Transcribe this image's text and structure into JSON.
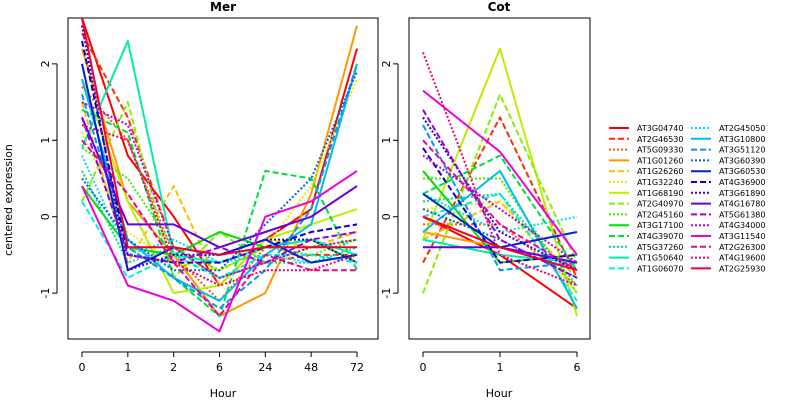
{
  "chart_data": [
    {
      "type": "line",
      "title": "Mer",
      "xlabel": "Hour",
      "ylabel": "centered expression",
      "categories": [
        "0",
        "1",
        "2",
        "6",
        "24",
        "48",
        "72"
      ],
      "yticks": [
        "-1",
        "0",
        "1",
        "2"
      ],
      "ylim": [
        -1.6,
        2.6
      ],
      "series": [
        {
          "name": "AT3G04740",
          "color": "#FF0000",
          "dash": "solid",
          "values": [
            2.6,
            0.8,
            0.0,
            -0.9,
            -0.3,
            0.1,
            2.2
          ]
        },
        {
          "name": "AT2G46530",
          "color": "#FF2A00",
          "dash": "dashed",
          "values": [
            2.4,
            1.3,
            -0.4,
            -0.8,
            -0.6,
            -0.5,
            -0.5
          ]
        },
        {
          "name": "AT5G09330",
          "color": "#FF5500",
          "dash": "dotted",
          "values": [
            1.7,
            1.0,
            -0.5,
            -1.1,
            -0.4,
            -0.3,
            -0.6
          ]
        },
        {
          "name": "AT1G01260",
          "color": "#FF9900",
          "dash": "solid",
          "values": [
            2.2,
            0.2,
            -0.5,
            -1.3,
            -1.0,
            0.3,
            2.5
          ]
        },
        {
          "name": "AT1G26260",
          "color": "#FFBB00",
          "dash": "dashed",
          "values": [
            1.5,
            -0.6,
            0.4,
            -0.9,
            -0.3,
            -0.4,
            -0.2
          ]
        },
        {
          "name": "AT1G32240",
          "color": "#EEEE00",
          "dash": "dotted",
          "values": [
            1.1,
            -0.2,
            -0.6,
            -0.7,
            -0.4,
            0.4,
            1.8
          ]
        },
        {
          "name": "AT1G68190",
          "color": "#BBEE00",
          "dash": "solid",
          "values": [
            1.8,
            0.2,
            -1.0,
            -0.9,
            -0.3,
            -0.1,
            0.1
          ]
        },
        {
          "name": "AT2G40970",
          "color": "#88EE00",
          "dash": "dashed",
          "values": [
            0.2,
            1.5,
            -0.8,
            -0.2,
            -0.6,
            -0.4,
            -0.3
          ]
        },
        {
          "name": "AT2G45160",
          "color": "#44EE00",
          "dash": "dotted",
          "values": [
            0.9,
            0.5,
            -0.4,
            -0.7,
            -0.4,
            -0.5,
            -0.3
          ]
        },
        {
          "name": "AT3G17100",
          "color": "#00DD00",
          "dash": "solid",
          "values": [
            0.4,
            -0.4,
            -0.5,
            -0.2,
            -0.4,
            -0.3,
            -0.6
          ]
        },
        {
          "name": "AT4G39070",
          "color": "#00DD44",
          "dash": "dashed",
          "values": [
            1.4,
            1.1,
            -0.8,
            -1.3,
            0.6,
            0.5,
            -0.7
          ]
        },
        {
          "name": "AT5G37260",
          "color": "#00DD88",
          "dash": "dotted",
          "values": [
            0.6,
            -0.6,
            -0.4,
            -0.8,
            -0.6,
            -0.6,
            -0.4
          ]
        },
        {
          "name": "AT1G50640",
          "color": "#00EEAA",
          "dash": "solid",
          "values": [
            0.9,
            2.3,
            -0.5,
            -0.6,
            -0.4,
            -0.3,
            -0.5
          ]
        },
        {
          "name": "AT1G06070",
          "color": "#00EEDD",
          "dash": "dashed",
          "values": [
            0.2,
            -0.8,
            -0.5,
            -0.8,
            -0.5,
            -0.5,
            -0.6
          ]
        },
        {
          "name": "AT2G45050",
          "color": "#00DDEE",
          "dash": "dotted",
          "values": [
            0.8,
            -0.5,
            -0.3,
            -0.6,
            -0.5,
            -0.6,
            -0.5
          ]
        },
        {
          "name": "AT3G10800",
          "color": "#00BBEE",
          "dash": "solid",
          "values": [
            1.8,
            -0.3,
            -0.8,
            -1.1,
            -0.5,
            -0.1,
            2.0
          ]
        },
        {
          "name": "AT3G51120",
          "color": "#0099EE",
          "dash": "dashed",
          "values": [
            1.6,
            -0.4,
            -0.8,
            -1.2,
            -0.7,
            0.1,
            2.0
          ]
        },
        {
          "name": "AT3G60390",
          "color": "#0066DD",
          "dash": "dotted",
          "values": [
            0.5,
            -0.3,
            -0.7,
            -0.7,
            -0.1,
            0.5,
            1.9
          ]
        },
        {
          "name": "AT3G60530",
          "color": "#0022CC",
          "dash": "solid",
          "values": [
            2.0,
            -0.7,
            -0.4,
            -0.5,
            -0.3,
            -0.6,
            -0.5
          ]
        },
        {
          "name": "AT4G36900",
          "color": "#1100CC",
          "dash": "dashed",
          "values": [
            2.3,
            -0.5,
            -0.6,
            -0.6,
            -0.4,
            -0.2,
            -0.1
          ]
        },
        {
          "name": "AT3G61890",
          "color": "#3300CC",
          "dash": "dotted",
          "values": [
            2.5,
            -0.7,
            -0.5,
            -0.5,
            -0.3,
            -0.3,
            -0.6
          ]
        },
        {
          "name": "AT4G16780",
          "color": "#6600DD",
          "dash": "solid",
          "values": [
            1.3,
            -0.1,
            -0.1,
            -0.4,
            -0.2,
            0.0,
            0.4
          ]
        },
        {
          "name": "AT5G61380",
          "color": "#9900DD",
          "dash": "dashed",
          "values": [
            1.3,
            -0.5,
            -0.6,
            -0.4,
            -0.6,
            -0.3,
            -0.2
          ]
        },
        {
          "name": "AT4G34000",
          "color": "#BB00DD",
          "dash": "dotted",
          "values": [
            1.5,
            1.2,
            -0.4,
            -0.8,
            -0.6,
            -0.4,
            -0.3
          ]
        },
        {
          "name": "AT3G11540",
          "color": "#EE00DD",
          "dash": "solid",
          "values": [
            0.4,
            -0.9,
            -1.1,
            -1.5,
            0.0,
            0.2,
            0.6
          ]
        },
        {
          "name": "AT2G26300",
          "color": "#EE0099",
          "dash": "dashed",
          "values": [
            1.0,
            0.3,
            -0.6,
            -1.3,
            -0.5,
            -0.7,
            -0.7
          ]
        },
        {
          "name": "AT4G19600",
          "color": "#EE0066",
          "dash": "dotted",
          "values": [
            1.2,
            1.0,
            -0.6,
            -0.9,
            -0.7,
            -0.7,
            -0.5
          ]
        },
        {
          "name": "AT2G25930",
          "color": "#EE0033",
          "dash": "solid",
          "values": [
            2.6,
            -0.4,
            -0.4,
            -0.5,
            -0.4,
            -0.4,
            -0.4
          ]
        }
      ]
    },
    {
      "type": "line",
      "title": "Cot",
      "xlabel": "Hour",
      "ylabel": "",
      "categories": [
        "0",
        "1",
        "6"
      ],
      "yticks": [
        "-1",
        "0",
        "1",
        "2"
      ],
      "ylim": [
        -1.6,
        2.6
      ],
      "series": [
        {
          "name": "AT3G04740",
          "color": "#FF0000",
          "dash": "solid",
          "values": [
            0.0,
            -0.5,
            -1.2
          ]
        },
        {
          "name": "AT2G46530",
          "color": "#FF2A00",
          "dash": "dashed",
          "values": [
            -0.6,
            1.3,
            -0.8
          ]
        },
        {
          "name": "AT5G09330",
          "color": "#FF5500",
          "dash": "dotted",
          "values": [
            -0.1,
            -0.1,
            -0.9
          ]
        },
        {
          "name": "AT1G01260",
          "color": "#FF9900",
          "dash": "solid",
          "values": [
            -0.2,
            -0.4,
            -0.6
          ]
        },
        {
          "name": "AT1G26260",
          "color": "#FFBB00",
          "dash": "dashed",
          "values": [
            -0.3,
            0.2,
            -0.8
          ]
        },
        {
          "name": "AT1G32240",
          "color": "#EEEE00",
          "dash": "dotted",
          "values": [
            0.1,
            0.2,
            -1.0
          ]
        },
        {
          "name": "AT1G68190",
          "color": "#BBEE00",
          "dash": "solid",
          "values": [
            -0.3,
            2.2,
            -1.3
          ]
        },
        {
          "name": "AT2G40970",
          "color": "#88EE00",
          "dash": "dashed",
          "values": [
            -1.0,
            1.6,
            -0.6
          ]
        },
        {
          "name": "AT2G45160",
          "color": "#44EE00",
          "dash": "dotted",
          "values": [
            0.5,
            0.5,
            -1.0
          ]
        },
        {
          "name": "AT3G17100",
          "color": "#00DD00",
          "dash": "solid",
          "values": [
            0.6,
            -0.6,
            -0.5
          ]
        },
        {
          "name": "AT4G39070",
          "color": "#00DD44",
          "dash": "dashed",
          "values": [
            0.3,
            0.8,
            -0.7
          ]
        },
        {
          "name": "AT5G37260",
          "color": "#00DD88",
          "dash": "dotted",
          "values": [
            0.2,
            0.3,
            -0.9
          ]
        },
        {
          "name": "AT1G50640",
          "color": "#00EEAA",
          "dash": "solid",
          "values": [
            -0.3,
            -0.5,
            -0.6
          ]
        },
        {
          "name": "AT1G06070",
          "color": "#00EEDD",
          "dash": "dashed",
          "values": [
            0.0,
            0.3,
            -1.1
          ]
        },
        {
          "name": "AT2G45050",
          "color": "#00DDEE",
          "dash": "dotted",
          "values": [
            0.3,
            -0.2,
            0.0
          ]
        },
        {
          "name": "AT3G10800",
          "color": "#00BBEE",
          "dash": "solid",
          "values": [
            -0.2,
            0.6,
            -1.2
          ]
        },
        {
          "name": "AT3G51120",
          "color": "#0099EE",
          "dash": "dashed",
          "values": [
            1.2,
            -0.7,
            -0.6
          ]
        },
        {
          "name": "AT3G60390",
          "color": "#0066DD",
          "dash": "dotted",
          "values": [
            0.1,
            -0.3,
            -0.8
          ]
        },
        {
          "name": "AT3G60530",
          "color": "#0022CC",
          "dash": "solid",
          "values": [
            0.3,
            -0.4,
            -0.2
          ]
        },
        {
          "name": "AT4G36900",
          "color": "#1100CC",
          "dash": "dashed",
          "values": [
            0.9,
            -0.6,
            -0.5
          ]
        },
        {
          "name": "AT3G61890",
          "color": "#3300CC",
          "dash": "dotted",
          "values": [
            1.3,
            -0.2,
            -0.7
          ]
        },
        {
          "name": "AT4G16780",
          "color": "#6600DD",
          "dash": "solid",
          "values": [
            -0.4,
            -0.4,
            -0.6
          ]
        },
        {
          "name": "AT5G61380",
          "color": "#9900DD",
          "dash": "dashed",
          "values": [
            1.4,
            -0.3,
            -0.8
          ]
        },
        {
          "name": "AT4G34000",
          "color": "#BB00DD",
          "dash": "dotted",
          "values": [
            0.8,
            0.1,
            -0.6
          ]
        },
        {
          "name": "AT3G11540",
          "color": "#EE00DD",
          "dash": "solid",
          "values": [
            1.65,
            0.85,
            -0.5
          ]
        },
        {
          "name": "AT2G26300",
          "color": "#EE0099",
          "dash": "dashed",
          "values": [
            1.0,
            -0.1,
            -0.7
          ]
        },
        {
          "name": "AT4G19600",
          "color": "#EE0066",
          "dash": "dotted",
          "values": [
            2.15,
            -0.5,
            -0.9
          ]
        },
        {
          "name": "AT2G25930",
          "color": "#EE0033",
          "dash": "solid",
          "values": [
            0.0,
            -0.4,
            -0.7
          ]
        }
      ]
    }
  ]
}
